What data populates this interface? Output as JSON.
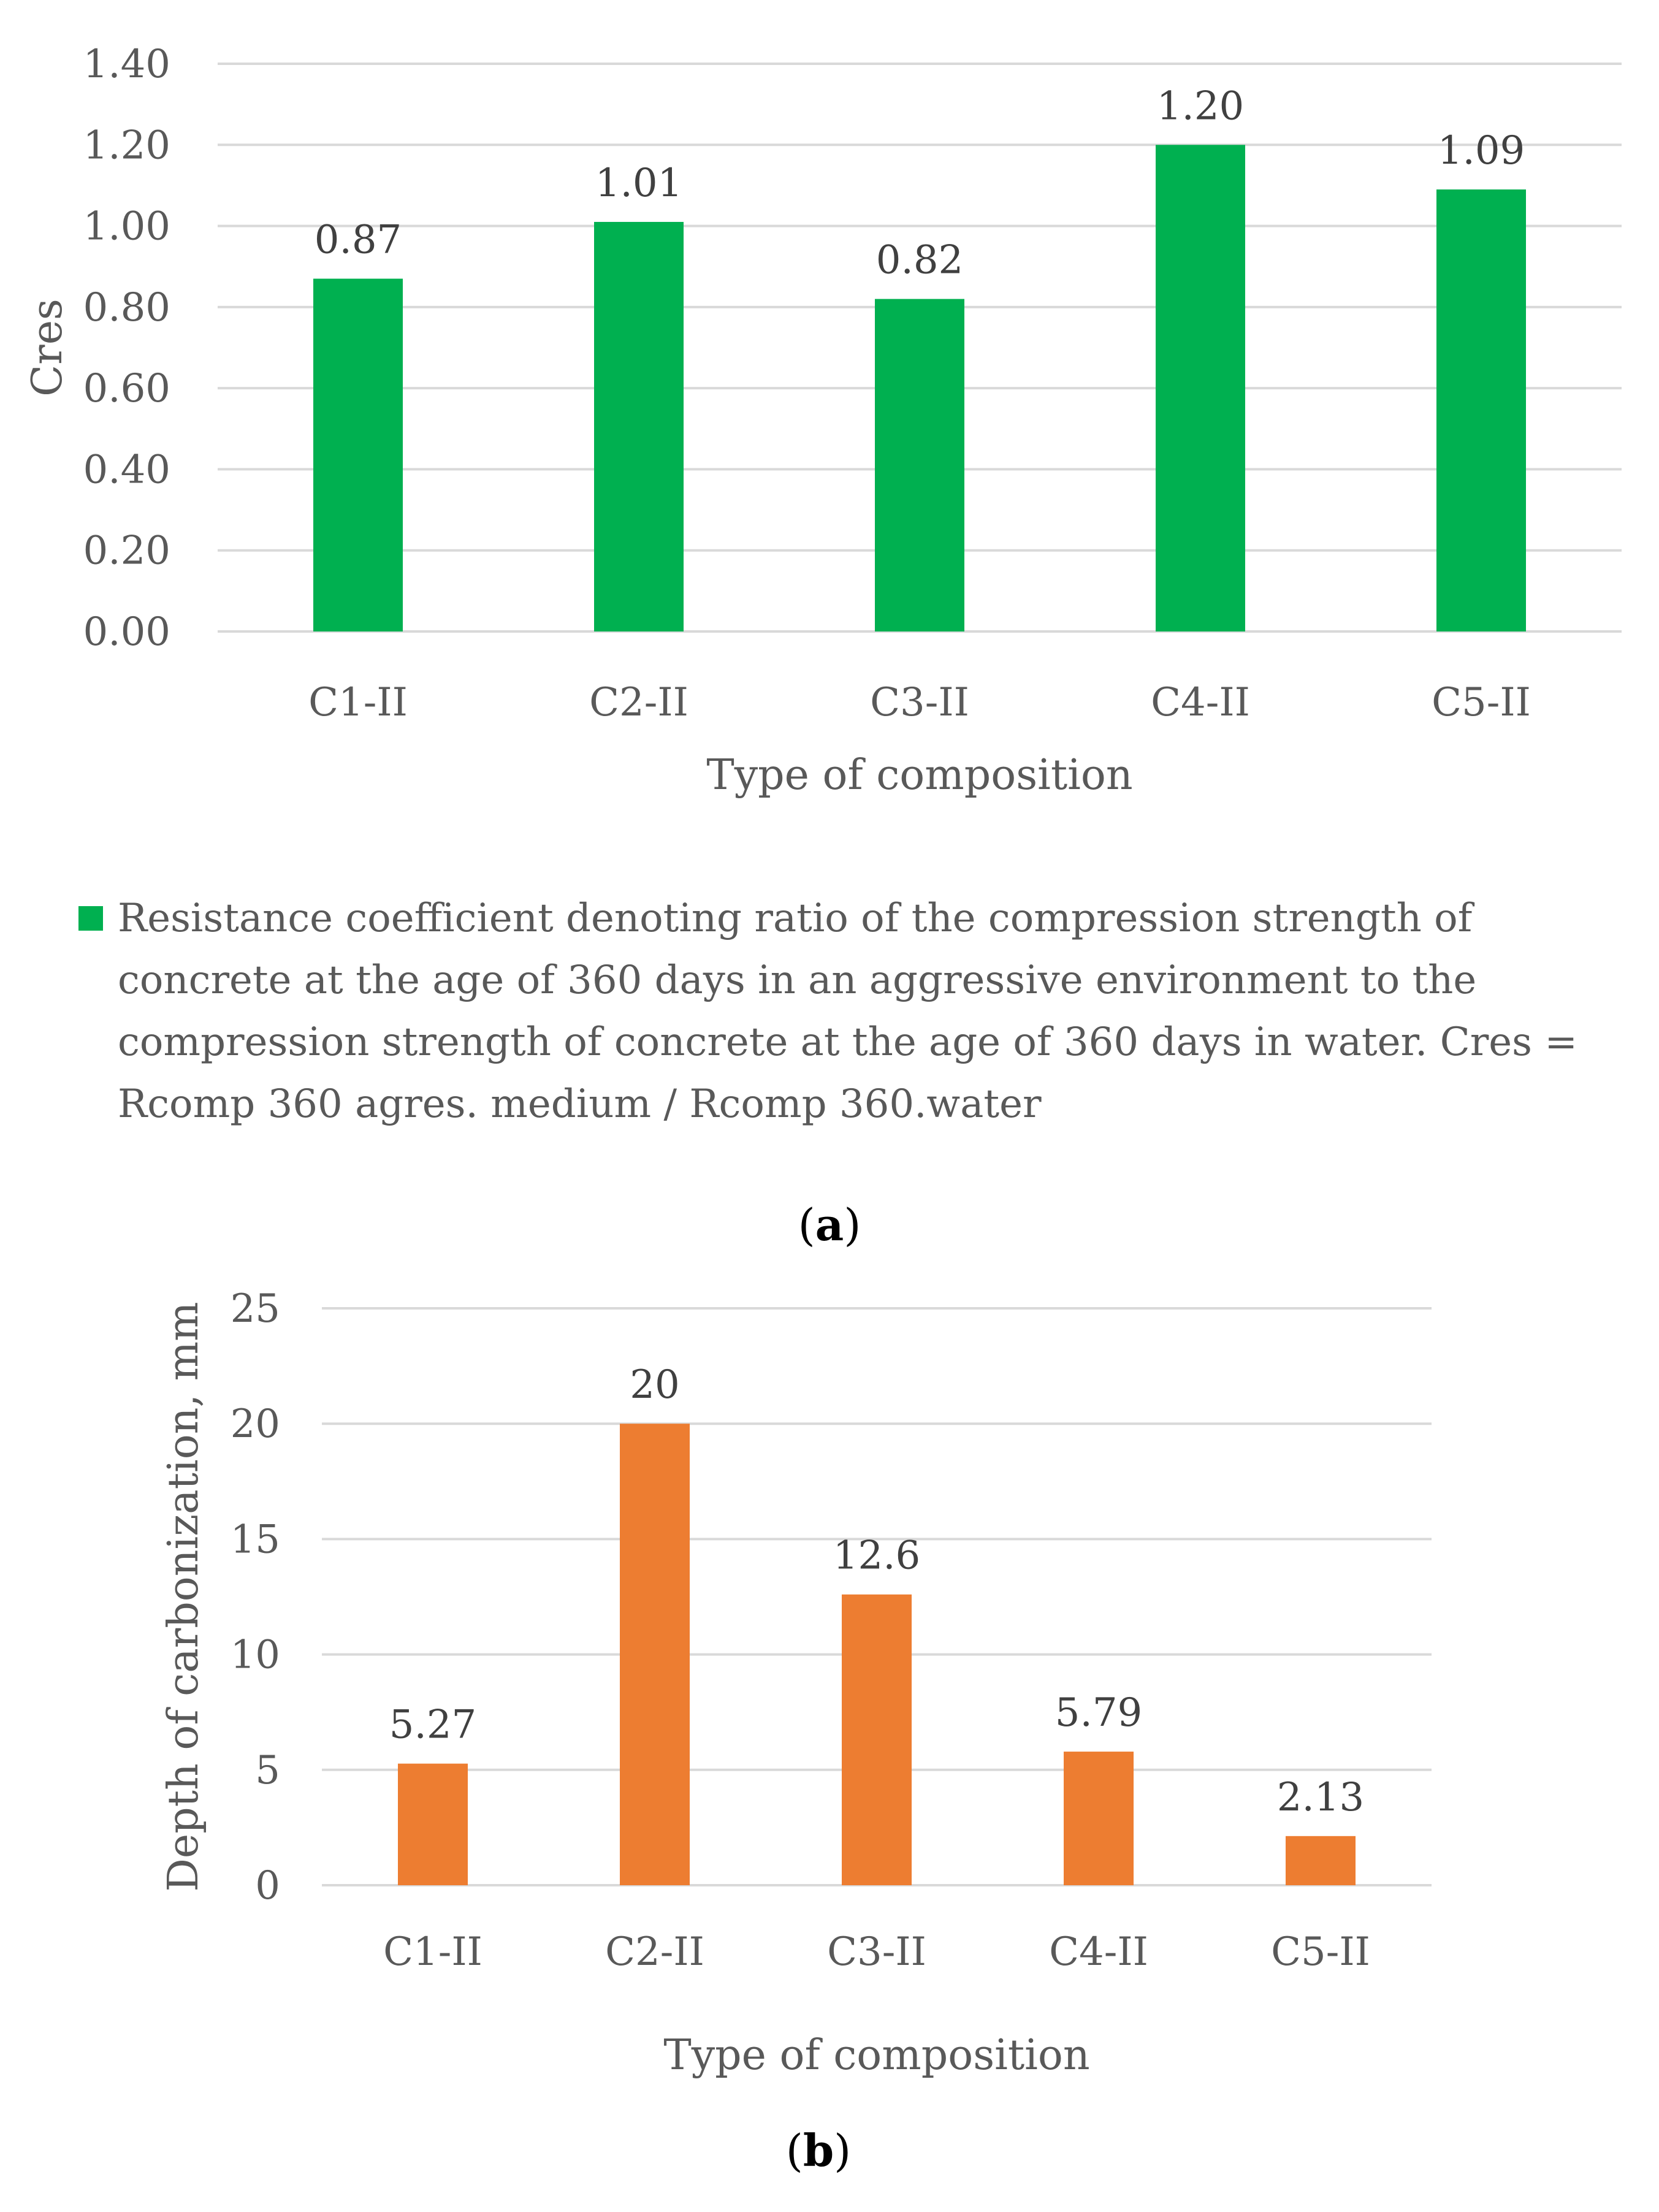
{
  "chart_data": [
    {
      "type": "bar",
      "panel": "a",
      "categories": [
        "C1-II",
        "C2-II",
        "C3-II",
        "C4-II",
        "C5-II"
      ],
      "values": [
        0.87,
        1.01,
        0.82,
        1.2,
        1.09
      ],
      "data_labels": [
        "0.87",
        "1.01",
        "0.82",
        "1.20",
        "1.09"
      ],
      "ylim": [
        0,
        1.4
      ],
      "yticks": [
        "0.00",
        "0.20",
        "0.40",
        "0.60",
        "0.80",
        "1.00",
        "1.20",
        "1.40"
      ],
      "xlabel": "Type of composition",
      "ylabel": "Cres",
      "color": "#00b050",
      "grid": true,
      "legend": {
        "placement": "bottom",
        "entry": "Resistance coefficient denoting ratio of the compression strength of concrete at the age of 360 days in an aggressive environment to the compression strength of concrete at the age of 360 days in water. Cres = Rcomp 360 agres. medium / Rcomp 360.water"
      },
      "caption": "a"
    },
    {
      "type": "bar",
      "panel": "b",
      "categories": [
        "C1-II",
        "C2-II",
        "C3-II",
        "C4-II",
        "C5-II"
      ],
      "values": [
        5.27,
        20,
        12.6,
        5.79,
        2.13
      ],
      "data_labels": [
        "5.27",
        "20",
        "12.6",
        "5.79",
        "2.13"
      ],
      "ylim": [
        0,
        25
      ],
      "yticks": [
        "0",
        "5",
        "10",
        "15",
        "20",
        "25"
      ],
      "xlabel": "Type of composition",
      "ylabel": "Depth of carbonization, mm",
      "color": "#ed7d31",
      "grid": true,
      "caption": "b"
    }
  ]
}
